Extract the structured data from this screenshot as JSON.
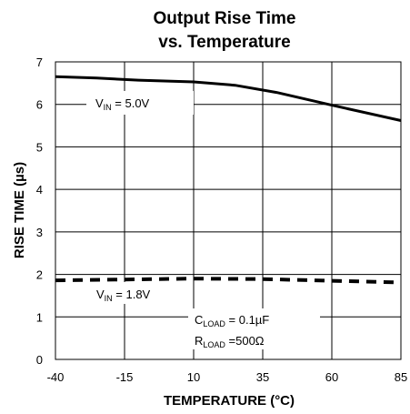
{
  "chart_data": {
    "type": "line",
    "title": "Output Rise Time",
    "subtitle": "vs. Temperature",
    "xlabel": "TEMPERATURE (°C)",
    "ylabel": "RISE TIME (µs)",
    "xlim": [
      -40,
      85
    ],
    "ylim": [
      0,
      7
    ],
    "xticks": [
      -40,
      -15,
      10,
      35,
      60,
      85
    ],
    "yticks": [
      0,
      1,
      2,
      3,
      4,
      5,
      6,
      7
    ],
    "grid": true,
    "series": [
      {
        "style": "solid",
        "x": [
          -40,
          -25,
          -10,
          10,
          25,
          40,
          60,
          85
        ],
        "y": [
          6.65,
          6.62,
          6.57,
          6.53,
          6.45,
          6.28,
          5.98,
          5.62
        ]
      },
      {
        "style": "dashed",
        "x": [
          -40,
          -15,
          10,
          35,
          60,
          85
        ],
        "y": [
          1.86,
          1.88,
          1.9,
          1.89,
          1.85,
          1.81
        ]
      }
    ],
    "annotations": [
      {
        "id": "vin5",
        "prefix": "V",
        "sub": "IN",
        "text": " = 5.0V"
      },
      {
        "id": "vin18",
        "prefix": "V",
        "sub": "IN",
        "text": " = 1.8V"
      },
      {
        "id": "cload",
        "prefix": "C",
        "sub": "LOAD",
        "text": " = 0.1µF"
      },
      {
        "id": "rload",
        "prefix": "R",
        "sub": "LOAD",
        "text": " =500Ω"
      }
    ]
  }
}
